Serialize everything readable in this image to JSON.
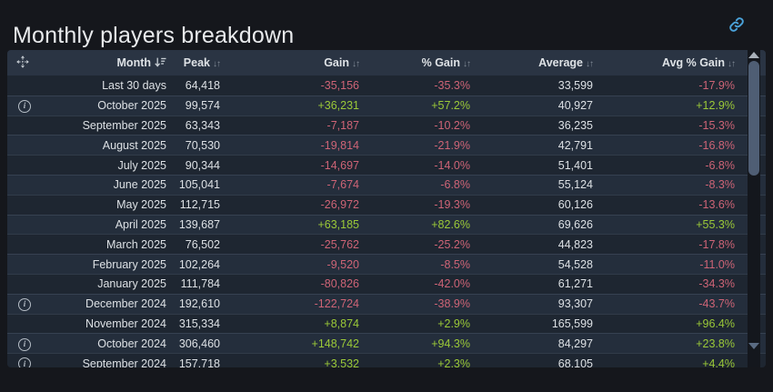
{
  "page": {
    "title": "Monthly players breakdown"
  },
  "colors": {
    "positive": "#9bc938",
    "negative": "#ce6476",
    "accent_link": "#4aa2d9",
    "header_bg": "#2a3443",
    "row_bg": "#1e2631",
    "row_alt_bg": "#242e3c",
    "page_bg": "#15171c"
  },
  "icons": {
    "info_glyph": "i",
    "sort_both_glyph": "↓↑"
  },
  "table": {
    "columns": [
      {
        "label": "",
        "icon": "move-handle",
        "sort": "none"
      },
      {
        "label": "Month",
        "sort": "desc"
      },
      {
        "label": "Peak",
        "sort": "both"
      },
      {
        "label": "Gain",
        "sort": "both"
      },
      {
        "label": "% Gain",
        "sort": "both"
      },
      {
        "label": "Average",
        "sort": "both"
      },
      {
        "label": "Avg % Gain",
        "sort": "both"
      }
    ],
    "rows": [
      {
        "info": false,
        "month": "Last 30 days",
        "peak": "64,418",
        "gain": "-35,156",
        "gain_pct": "-35.3%",
        "average": "33,599",
        "avg_gain_pct": "-17.9%"
      },
      {
        "info": true,
        "month": "October 2025",
        "peak": "99,574",
        "gain": "+36,231",
        "gain_pct": "+57.2%",
        "average": "40,927",
        "avg_gain_pct": "+12.9%"
      },
      {
        "info": false,
        "month": "September 2025",
        "peak": "63,343",
        "gain": "-7,187",
        "gain_pct": "-10.2%",
        "average": "36,235",
        "avg_gain_pct": "-15.3%"
      },
      {
        "info": false,
        "month": "August 2025",
        "peak": "70,530",
        "gain": "-19,814",
        "gain_pct": "-21.9%",
        "average": "42,791",
        "avg_gain_pct": "-16.8%"
      },
      {
        "info": false,
        "month": "July 2025",
        "peak": "90,344",
        "gain": "-14,697",
        "gain_pct": "-14.0%",
        "average": "51,401",
        "avg_gain_pct": "-6.8%"
      },
      {
        "info": false,
        "month": "June 2025",
        "peak": "105,041",
        "gain": "-7,674",
        "gain_pct": "-6.8%",
        "average": "55,124",
        "avg_gain_pct": "-8.3%"
      },
      {
        "info": false,
        "month": "May 2025",
        "peak": "112,715",
        "gain": "-26,972",
        "gain_pct": "-19.3%",
        "average": "60,126",
        "avg_gain_pct": "-13.6%"
      },
      {
        "info": false,
        "month": "April 2025",
        "peak": "139,687",
        "gain": "+63,185",
        "gain_pct": "+82.6%",
        "average": "69,626",
        "avg_gain_pct": "+55.3%"
      },
      {
        "info": false,
        "month": "March 2025",
        "peak": "76,502",
        "gain": "-25,762",
        "gain_pct": "-25.2%",
        "average": "44,823",
        "avg_gain_pct": "-17.8%"
      },
      {
        "info": false,
        "month": "February 2025",
        "peak": "102,264",
        "gain": "-9,520",
        "gain_pct": "-8.5%",
        "average": "54,528",
        "avg_gain_pct": "-11.0%"
      },
      {
        "info": false,
        "month": "January 2025",
        "peak": "111,784",
        "gain": "-80,826",
        "gain_pct": "-42.0%",
        "average": "61,271",
        "avg_gain_pct": "-34.3%"
      },
      {
        "info": true,
        "month": "December 2024",
        "peak": "192,610",
        "gain": "-122,724",
        "gain_pct": "-38.9%",
        "average": "93,307",
        "avg_gain_pct": "-43.7%"
      },
      {
        "info": false,
        "month": "November 2024",
        "peak": "315,334",
        "gain": "+8,874",
        "gain_pct": "+2.9%",
        "average": "165,599",
        "avg_gain_pct": "+96.4%"
      },
      {
        "info": true,
        "month": "October 2024",
        "peak": "306,460",
        "gain": "+148,742",
        "gain_pct": "+94.3%",
        "average": "84,297",
        "avg_gain_pct": "+23.8%"
      },
      {
        "info": true,
        "month": "September 2024",
        "peak": "157,718",
        "gain": "+3,532",
        "gain_pct": "+2.3%",
        "average": "68,105",
        "avg_gain_pct": "+4.4%"
      }
    ]
  }
}
